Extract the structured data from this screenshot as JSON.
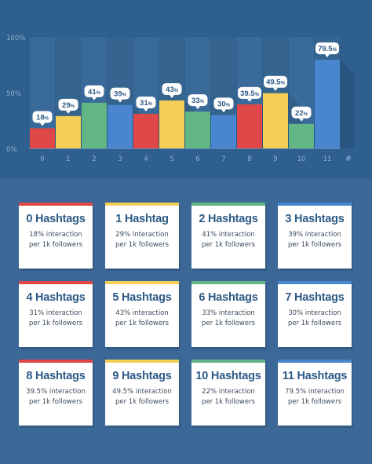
{
  "chart_data": {
    "type": "bar",
    "categories": [
      "0",
      "1",
      "2",
      "3",
      "4",
      "5",
      "6",
      "7",
      "8",
      "9",
      "10",
      "11"
    ],
    "values": [
      18,
      29,
      41,
      39,
      31,
      43,
      33,
      30,
      39.5,
      49.5,
      22,
      79.5
    ],
    "value_labels": [
      "18",
      "29",
      "41",
      "39",
      "31",
      "43",
      "33",
      "30",
      "39.5",
      "49.5",
      "22",
      "79.5"
    ],
    "value_unit": "%",
    "ylim": [
      0,
      100
    ],
    "y_ticks": [
      "100%",
      "50%",
      "0%"
    ],
    "xlabel": "#",
    "bar_colors": [
      "#e04848",
      "#f3cf58",
      "#62b584",
      "#4a86d0",
      "#e04848",
      "#f3cf58",
      "#62b584",
      "#4a86d0",
      "#e04848",
      "#f3cf58",
      "#62b584",
      "#4a86d0"
    ],
    "grid": false
  },
  "cards": [
    {
      "title": "0 Hashtags",
      "line1": "18% interaction",
      "line2": "per 1k followers",
      "color": "#e04848"
    },
    {
      "title": "1 Hashtag",
      "line1": "29% interaction",
      "line2": "per 1k followers",
      "color": "#f3cf58"
    },
    {
      "title": "2 Hashtags",
      "line1": "41% interaction",
      "line2": "per 1k followers",
      "color": "#62b584"
    },
    {
      "title": "3 Hashtags",
      "line1": "39% interaction",
      "line2": "per 1k followers",
      "color": "#4a86d0"
    },
    {
      "title": "4 Hashtags",
      "line1": "31% interaction",
      "line2": "per 1k followers",
      "color": "#e04848"
    },
    {
      "title": "5 Hashtags",
      "line1": "43% interaction",
      "line2": "per 1k followers",
      "color": "#f3cf58"
    },
    {
      "title": "6 Hashtags",
      "line1": "33% interaction",
      "line2": "per 1k followers",
      "color": "#62b584"
    },
    {
      "title": "7 Hashtags",
      "line1": "30% interaction",
      "line2": "per 1k followers",
      "color": "#4a86d0"
    },
    {
      "title": "8 Hashtags",
      "line1": "39.5% interaction",
      "line2": "per 1k followers",
      "color": "#e04848"
    },
    {
      "title": "9 Hashtags",
      "line1": "49.5% interaction",
      "line2": "per 1k followers",
      "color": "#f3cf58"
    },
    {
      "title": "10 Hashtags",
      "line1": "22% interaction",
      "line2": "per 1k followers",
      "color": "#62b584"
    },
    {
      "title": "11 Hashtags",
      "line1": "79.5% interaction",
      "line2": "per 1k followers",
      "color": "#4a86d0"
    }
  ]
}
